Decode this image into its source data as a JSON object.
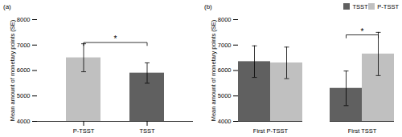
{
  "chart_data": [
    {
      "type": "bar",
      "title": "(a)",
      "categories": [
        "P-TSST",
        "TSST"
      ],
      "values": [
        6500,
        5900
      ],
      "errors": [
        550,
        400
      ],
      "colors": [
        "#c0c0c0",
        "#606060"
      ],
      "ylabel": "Mean amount of monetary points (SE)",
      "ylim": [
        4000,
        8000
      ],
      "yticks": [
        4000,
        5000,
        6000,
        7000,
        8000
      ],
      "annotations": [
        {
          "text": "*",
          "x": [
            "P-TSST",
            "TSST"
          ],
          "y": 7100
        }
      ]
    },
    {
      "type": "bar",
      "title": "(b)",
      "categories": [
        "First P-TSST",
        "First TSST"
      ],
      "series": [
        {
          "name": "TSST",
          "color": "#606060",
          "values": [
            6350,
            5300
          ],
          "errors": [
            620,
            680
          ]
        },
        {
          "name": "P-TSST",
          "color": "#c0c0c0",
          "values": [
            6300,
            6650
          ],
          "errors": [
            620,
            850
          ]
        }
      ],
      "ylabel": "Mean amount of monetary points (SE)",
      "ylim": [
        4000,
        8000
      ],
      "yticks": [
        4000,
        5000,
        6000,
        7000,
        8000
      ],
      "legend": "upper right",
      "annotations": [
        {
          "text": "*",
          "x": "First TSST",
          "series": [
            "TSST",
            "P-TSST"
          ],
          "y": 7400
        }
      ]
    }
  ]
}
